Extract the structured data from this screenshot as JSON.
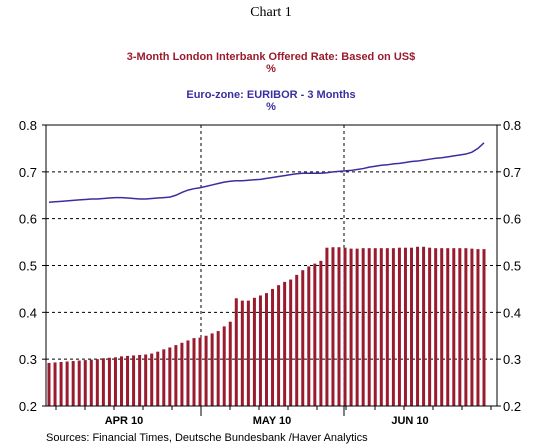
{
  "chart_data": {
    "type": "bar",
    "title": "Chart 1",
    "legend": [
      {
        "label": "3-Month London Interbank Offered Rate: Based on US$",
        "unit": "%",
        "color": "#9a1b2e"
      },
      {
        "label": "Euro-zone: EURIBOR - 3 Months",
        "unit": "%",
        "color": "#3a2fa0"
      }
    ],
    "ylim": [
      0.2,
      0.8
    ],
    "yticks": [
      "0.2",
      "0.3",
      "0.4",
      "0.5",
      "0.6",
      "0.7",
      "0.8"
    ],
    "ytick_values": [
      0.2,
      0.3,
      0.4,
      0.5,
      0.6,
      0.7,
      0.8
    ],
    "months": [
      "APR 10",
      "MAY 10",
      "JUN 10"
    ],
    "grid": true,
    "series": [
      {
        "name": "3-Month London Interbank Offered Rate: Based on US$",
        "kind": "bar",
        "values": [
          0.292,
          0.293,
          0.294,
          0.295,
          0.296,
          0.297,
          0.298,
          0.299,
          0.3,
          0.302,
          0.303,
          0.304,
          0.306,
          0.307,
          0.308,
          0.309,
          0.31,
          0.312,
          0.316,
          0.321,
          0.325,
          0.33,
          0.335,
          0.34,
          0.345,
          0.346,
          0.35,
          0.355,
          0.36,
          0.37,
          0.38,
          0.43,
          0.425,
          0.425,
          0.431,
          0.436,
          0.441,
          0.45,
          0.458,
          0.465,
          0.47,
          0.48,
          0.49,
          0.498,
          0.504,
          0.51,
          0.538,
          0.539,
          0.539,
          0.538,
          0.536,
          0.536,
          0.537,
          0.537,
          0.537,
          0.537,
          0.537,
          0.537,
          0.538,
          0.538,
          0.538,
          0.54,
          0.54,
          0.538,
          0.537,
          0.537,
          0.537,
          0.537,
          0.537,
          0.537,
          0.536,
          0.535,
          0.535
        ]
      },
      {
        "name": "Euro-zone: EURIBOR - 3 Months",
        "kind": "line",
        "values": [
          0.635,
          0.636,
          0.637,
          0.638,
          0.639,
          0.64,
          0.641,
          0.642,
          0.642,
          0.643,
          0.644,
          0.645,
          0.645,
          0.644,
          0.643,
          0.642,
          0.642,
          0.643,
          0.644,
          0.645,
          0.646,
          0.65,
          0.656,
          0.661,
          0.664,
          0.666,
          0.669,
          0.672,
          0.675,
          0.678,
          0.68,
          0.681,
          0.681,
          0.682,
          0.683,
          0.684,
          0.686,
          0.688,
          0.69,
          0.692,
          0.694,
          0.696,
          0.697,
          0.697,
          0.697,
          0.697,
          0.698,
          0.7,
          0.701,
          0.702,
          0.703,
          0.705,
          0.707,
          0.71,
          0.712,
          0.714,
          0.715,
          0.717,
          0.718,
          0.72,
          0.722,
          0.723,
          0.725,
          0.727,
          0.729,
          0.73,
          0.732,
          0.734,
          0.736,
          0.738,
          0.742,
          0.75,
          0.762
        ]
      }
    ]
  },
  "source": "Sources:  Financial Times, Deutsche Bundesbank /Haver Analytics"
}
